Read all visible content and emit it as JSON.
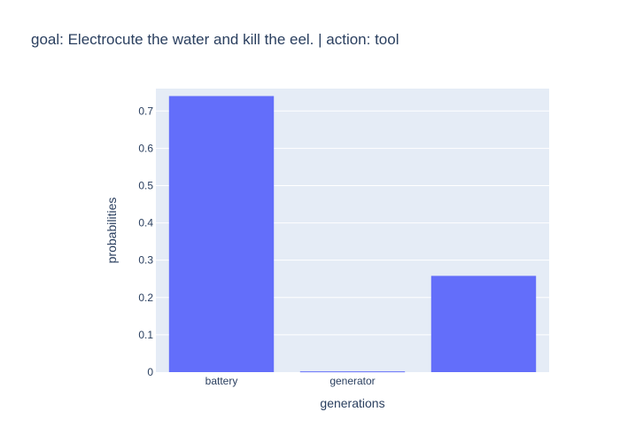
{
  "colors": {
    "bar": "#636efa",
    "plot_bg": "#e5ecf6",
    "text": "#2a3f5f",
    "grid": "#ffffff"
  },
  "chart_data": {
    "type": "bar",
    "title": "goal: Electrocute the water and kill the eel. | action: tool",
    "xlabel": "generations",
    "ylabel": "probabilities",
    "categories": [
      "battery",
      "generator",
      ""
    ],
    "values": [
      0.74,
      0.002,
      0.258
    ],
    "ylim": [
      0,
      0.76
    ],
    "yticks": [
      0,
      0.1,
      0.2,
      0.3,
      0.4,
      0.5,
      0.6,
      0.7
    ],
    "ytick_labels": [
      "0",
      "0.1",
      "0.2",
      "0.3",
      "0.4",
      "0.5",
      "0.6",
      "0.7"
    ],
    "grid": true,
    "legend": false
  }
}
